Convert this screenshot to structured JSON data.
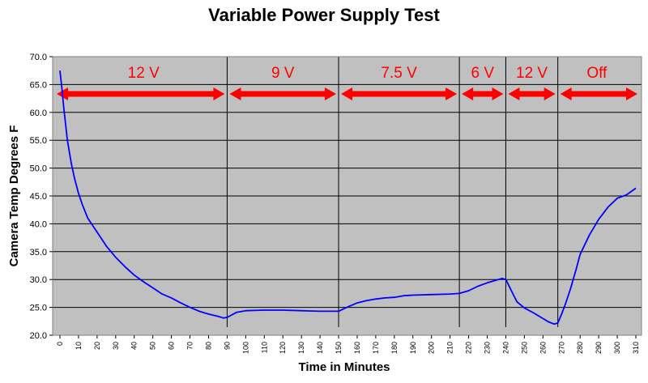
{
  "chart_data": {
    "type": "line",
    "title": "Variable Power Supply Test",
    "xlabel": "Time in Minutes",
    "ylabel": "Camera Temp Degrees F",
    "xlim": [
      0,
      310
    ],
    "ylim": [
      20,
      70
    ],
    "y_ticks": [
      "20.0",
      "25.0",
      "30.0",
      "35.0",
      "40.0",
      "45.0",
      "50.0",
      "55.0",
      "60.0",
      "65.0",
      "70.0"
    ],
    "x_ticks": [
      "0",
      "10",
      "20",
      "30",
      "40",
      "50",
      "60",
      "70",
      "80",
      "90",
      "100",
      "110",
      "120",
      "130",
      "140",
      "150",
      "160",
      "170",
      "180",
      "190",
      "200",
      "210",
      "220",
      "230",
      "240",
      "250",
      "260",
      "270",
      "280",
      "290",
      "300",
      "310"
    ],
    "grid": "horizontal",
    "background_color": "#c0c0c0",
    "line_color": "#0000ff",
    "region_color": "#ff0000",
    "series": [
      {
        "x": [
          0,
          1,
          2,
          3,
          4,
          6,
          8,
          10,
          12,
          15,
          20,
          25,
          30,
          35,
          40,
          45,
          50,
          55,
          60,
          65,
          70,
          75,
          80,
          85,
          88,
          90,
          95,
          100,
          110,
          120,
          130,
          140,
          150,
          155,
          160,
          165,
          170,
          175,
          180,
          185,
          190,
          200,
          210,
          215,
          220,
          225,
          230,
          235,
          238,
          240,
          243,
          246,
          250,
          255,
          260,
          263,
          266,
          268,
          270,
          272,
          275,
          278,
          280,
          285,
          290,
          295,
          300,
          305,
          310
        ],
        "y": [
          67.5,
          64.5,
          61.0,
          58.0,
          55.0,
          51.0,
          48.0,
          45.5,
          43.5,
          41.0,
          38.5,
          36.0,
          34.0,
          32.3,
          30.8,
          29.6,
          28.5,
          27.4,
          26.7,
          25.8,
          25.0,
          24.3,
          23.8,
          23.4,
          23.1,
          23.2,
          24.1,
          24.4,
          24.5,
          24.5,
          24.4,
          24.3,
          24.3,
          25.1,
          25.8,
          26.2,
          26.5,
          26.7,
          26.8,
          27.1,
          27.2,
          27.3,
          27.4,
          27.5,
          28.0,
          28.8,
          29.4,
          29.9,
          30.2,
          30.0,
          28.0,
          26.0,
          24.9,
          24.0,
          23.0,
          22.4,
          22.0,
          22.2,
          23.8,
          25.5,
          28.5,
          32.0,
          34.5,
          38.0,
          40.8,
          43.0,
          44.6,
          45.2,
          46.4
        ]
      }
    ],
    "regions": [
      {
        "label": "12 V",
        "start": 0,
        "end": 90
      },
      {
        "label": "9 V",
        "start": 90,
        "end": 150
      },
      {
        "label": "7.5 V",
        "start": 150,
        "end": 215
      },
      {
        "label": "6 V",
        "start": 215,
        "end": 240
      },
      {
        "label": "12 V",
        "start": 240,
        "end": 268
      },
      {
        "label": "Off",
        "start": 268,
        "end": 310
      }
    ]
  }
}
